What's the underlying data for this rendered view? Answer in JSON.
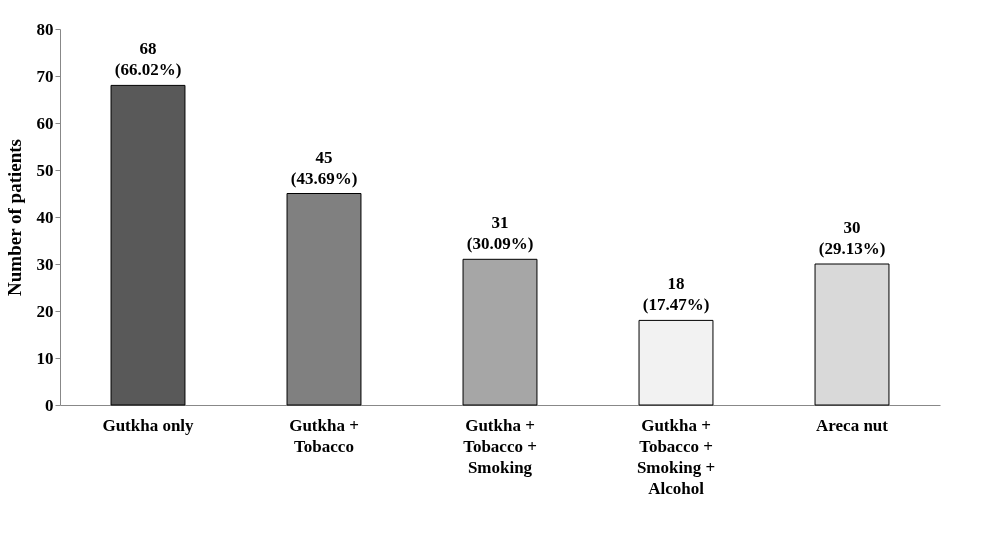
{
  "chart_data": {
    "type": "bar",
    "ylabel": "Number of patients",
    "categories": [
      "Gutkha only",
      "Gutkha +\nTobacco",
      "Gutkha +\nTobacco +\nSmoking",
      "Gutkha +\nTobacco +\nSmoking +\nAlcohol",
      "Areca nut"
    ],
    "values": [
      68,
      45,
      31,
      18,
      30
    ],
    "colors": [
      "#595959",
      "#808080",
      "#a6a6a6",
      "#f2f2f2",
      "#d9d9d9"
    ],
    "value_labels": [
      "68\n(66.02%)",
      "45\n(43.69%)",
      "31\n(30.09%)",
      "18\n(17.47%)",
      "30\n(29.13%)"
    ],
    "ylim": [
      0,
      80
    ],
    "yticks": [
      0,
      10,
      20,
      30,
      40,
      50,
      60,
      70,
      80
    ],
    "grid": false,
    "legend": false
  }
}
